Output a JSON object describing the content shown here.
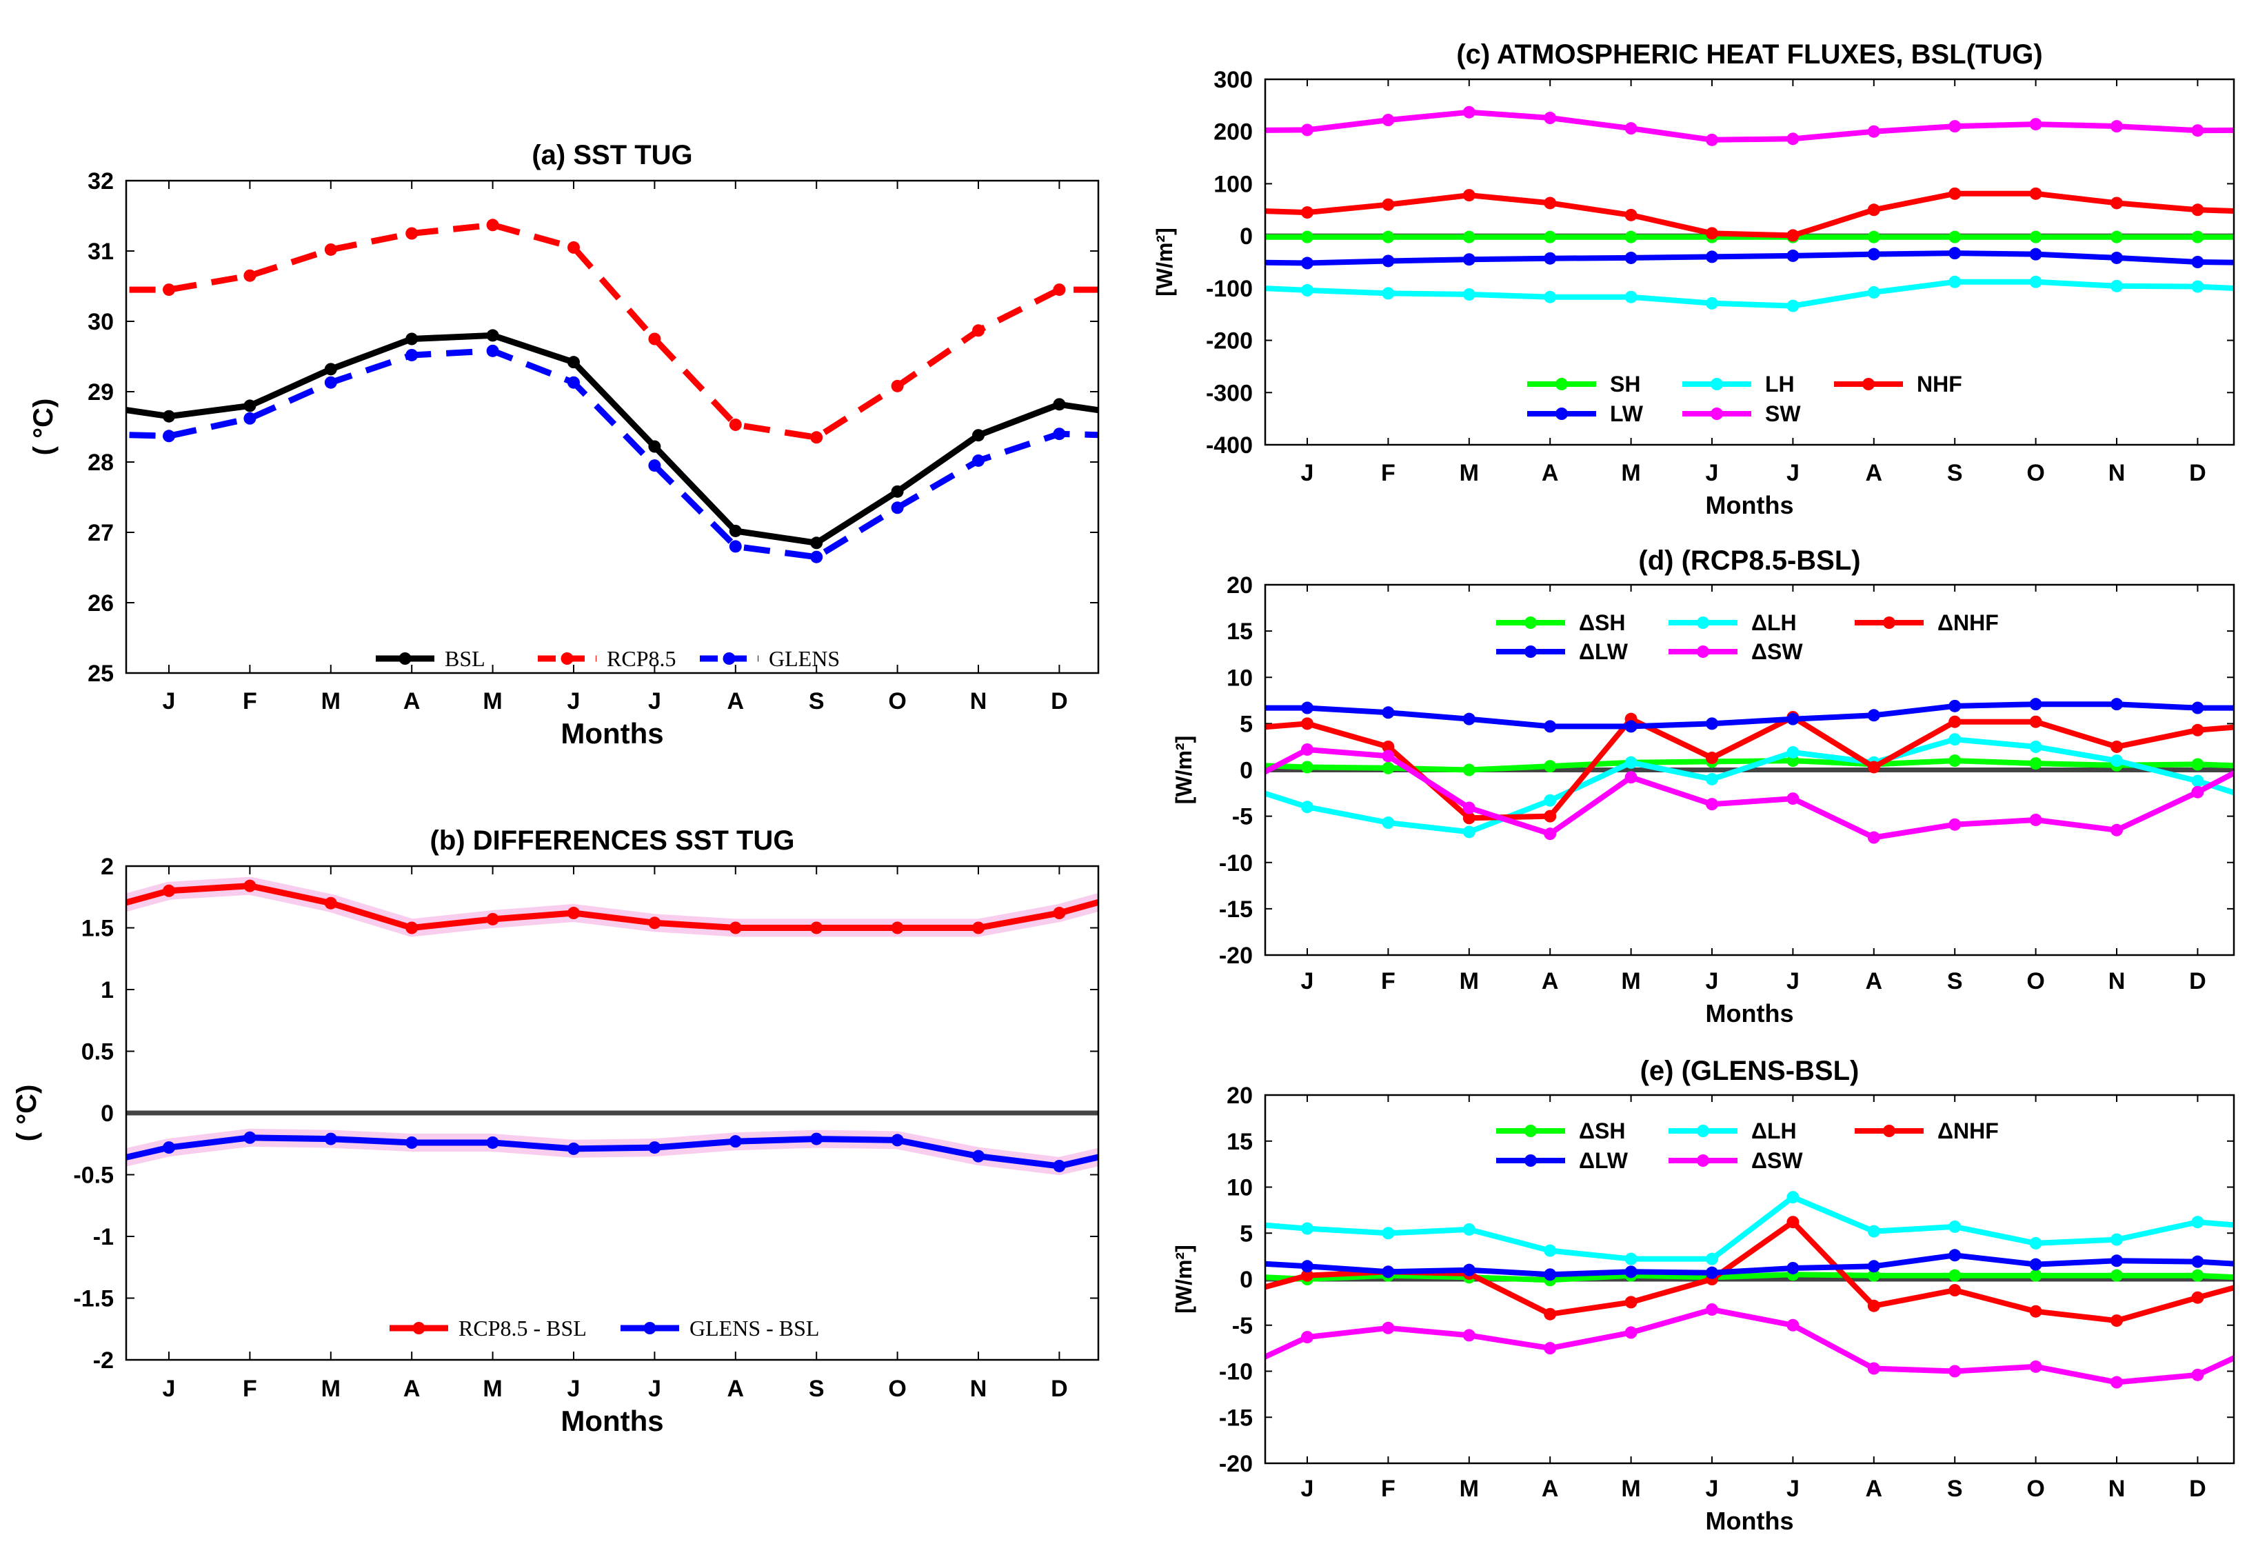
{
  "colors": {
    "black": "#000000",
    "red": "#ff0000",
    "blue": "#0000ff",
    "green": "#00ff00",
    "cyan": "#00ffff",
    "magenta": "#ff00ff",
    "zero_line": "#444444",
    "spread": "#f5b8e6"
  },
  "chart_data": [
    {
      "id": "a",
      "type": "line",
      "title": "(a) SST TUG",
      "xlabel": "Months",
      "ylabel": "( °C)",
      "ylim": [
        25,
        32
      ],
      "yticks": [
        25,
        26,
        27,
        28,
        29,
        30,
        31,
        32
      ],
      "categories": [
        "J",
        "F",
        "M",
        "A",
        "M",
        "J",
        "J",
        "A",
        "S",
        "O",
        "N",
        "D"
      ],
      "series": [
        {
          "name": "BSL",
          "color": "black",
          "dash": "solid",
          "values": [
            28.65,
            28.8,
            29.32,
            29.75,
            29.8,
            29.42,
            28.22,
            27.02,
            26.85,
            27.58,
            28.38,
            28.82
          ]
        },
        {
          "name": "RCP8.5",
          "color": "red",
          "dash": "dashed",
          "values": [
            30.45,
            30.65,
            31.02,
            31.25,
            31.37,
            31.05,
            29.75,
            28.53,
            28.35,
            29.08,
            29.87,
            30.45
          ]
        },
        {
          "name": "GLENS",
          "color": "blue",
          "dash": "dashed",
          "values": [
            28.37,
            28.62,
            29.13,
            29.52,
            29.58,
            29.13,
            27.95,
            26.8,
            26.65,
            27.35,
            28.02,
            28.4
          ]
        }
      ],
      "legend": [
        "BSL",
        "RCP8.5",
        "GLENS"
      ]
    },
    {
      "id": "b",
      "type": "line",
      "title": "(b) DIFFERENCES SST TUG",
      "xlabel": "Months",
      "ylabel": "( °C)",
      "ylim": [
        -2,
        2
      ],
      "yticks": [
        -2,
        -1.5,
        -1,
        -0.5,
        0,
        0.5,
        1,
        1.5,
        2
      ],
      "categories": [
        "J",
        "F",
        "M",
        "A",
        "M",
        "J",
        "J",
        "A",
        "S",
        "O",
        "N",
        "D"
      ],
      "series": [
        {
          "name": "RCP8.5 - BSL",
          "color": "red",
          "dash": "solid",
          "values": [
            1.8,
            1.84,
            1.7,
            1.5,
            1.57,
            1.62,
            1.54,
            1.5,
            1.5,
            1.5,
            1.5,
            1.62
          ]
        },
        {
          "name": "GLENS - BSL",
          "color": "blue",
          "dash": "solid",
          "values": [
            -0.28,
            -0.2,
            -0.21,
            -0.24,
            -0.24,
            -0.29,
            -0.28,
            -0.23,
            -0.21,
            -0.22,
            -0.35,
            -0.43
          ]
        }
      ],
      "legend": [
        "RCP8.5 - BSL",
        "GLENS - BSL"
      ]
    },
    {
      "id": "c",
      "type": "line",
      "title": "(c) ATMOSPHERIC HEAT FLUXES, BSL(TUG)",
      "xlabel": "Months",
      "ylabel": "[W/m²]",
      "ylim": [
        -400,
        300
      ],
      "yticks": [
        -400,
        -300,
        -200,
        -100,
        0,
        100,
        200,
        300
      ],
      "categories": [
        "J",
        "F",
        "M",
        "A",
        "M",
        "J",
        "J",
        "A",
        "S",
        "O",
        "N",
        "D"
      ],
      "series": [
        {
          "name": "SH",
          "color": "green",
          "values": [
            -2,
            -2,
            -2,
            -2,
            -2,
            -2,
            -2,
            -2,
            -2,
            -2,
            -2,
            -2
          ]
        },
        {
          "name": "LH",
          "color": "cyan",
          "values": [
            -104,
            -110,
            -112,
            -117,
            -117,
            -129,
            -134,
            -108,
            -88,
            -88,
            -96,
            -97
          ]
        },
        {
          "name": "NHF",
          "color": "red",
          "values": [
            45,
            60,
            78,
            63,
            40,
            5,
            1,
            50,
            81,
            81,
            63,
            50
          ]
        },
        {
          "name": "LW",
          "color": "blue",
          "values": [
            -52,
            -48,
            -45,
            -43,
            -42,
            -40,
            -38,
            -35,
            -33,
            -35,
            -42,
            -50
          ]
        },
        {
          "name": "SW",
          "color": "magenta",
          "values": [
            203,
            222,
            237,
            226,
            206,
            184,
            186,
            200,
            210,
            214,
            210,
            202
          ]
        }
      ],
      "legend": [
        "SH",
        "LH",
        "NHF",
        "LW",
        "SW"
      ]
    },
    {
      "id": "d",
      "type": "line",
      "title": "(d) (RCP8.5-BSL)",
      "xlabel": "Months",
      "ylabel": "[W/m²]",
      "ylim": [
        -20,
        20
      ],
      "yticks": [
        -20,
        -15,
        -10,
        -5,
        0,
        5,
        10,
        15,
        20
      ],
      "categories": [
        "J",
        "F",
        "M",
        "A",
        "M",
        "J",
        "J",
        "A",
        "S",
        "O",
        "N",
        "D"
      ],
      "series": [
        {
          "name": "ΔSH",
          "color": "green",
          "values": [
            0.3,
            0.2,
            0.0,
            0.4,
            0.8,
            0.9,
            1.0,
            0.6,
            1.0,
            0.7,
            0.5,
            0.6
          ]
        },
        {
          "name": "ΔLH",
          "color": "cyan",
          "values": [
            -4.0,
            -5.7,
            -6.7,
            -3.3,
            0.8,
            -1.0,
            1.9,
            0.8,
            3.3,
            2.5,
            1.0,
            -1.2
          ]
        },
        {
          "name": "ΔNHF",
          "color": "red",
          "values": [
            5.0,
            2.5,
            -5.2,
            -5.0,
            5.5,
            1.3,
            5.7,
            0.3,
            5.2,
            5.2,
            2.5,
            4.3
          ]
        },
        {
          "name": "ΔLW",
          "color": "blue",
          "values": [
            6.7,
            6.2,
            5.5,
            4.7,
            4.7,
            5.0,
            5.5,
            5.9,
            6.9,
            7.1,
            7.1,
            6.7
          ]
        },
        {
          "name": "ΔSW",
          "color": "magenta",
          "values": [
            2.2,
            1.5,
            -4.1,
            -6.9,
            -0.8,
            -3.7,
            -3.1,
            -7.3,
            -5.9,
            -5.4,
            -6.5,
            -2.4
          ]
        }
      ],
      "legend": [
        "ΔSH",
        "ΔLH",
        "ΔNHF",
        "ΔLW",
        "ΔSW"
      ]
    },
    {
      "id": "e",
      "type": "line",
      "title": "(e) (GLENS-BSL)",
      "xlabel": "Months",
      "ylabel": "[W/m²]",
      "ylim": [
        -20,
        20
      ],
      "yticks": [
        -20,
        -15,
        -10,
        -5,
        0,
        5,
        10,
        15,
        20
      ],
      "categories": [
        "J",
        "F",
        "M",
        "A",
        "M",
        "J",
        "J",
        "A",
        "S",
        "O",
        "N",
        "D"
      ],
      "series": [
        {
          "name": "ΔSH",
          "color": "green",
          "values": [
            0.0,
            0.4,
            0.2,
            -0.1,
            0.4,
            0.2,
            0.5,
            0.4,
            0.4,
            0.4,
            0.4,
            0.4
          ]
        },
        {
          "name": "ΔLH",
          "color": "cyan",
          "values": [
            5.5,
            5.0,
            5.4,
            3.1,
            2.2,
            2.2,
            8.9,
            5.2,
            5.7,
            3.9,
            4.3,
            6.2
          ]
        },
        {
          "name": "ΔNHF",
          "color": "red",
          "values": [
            0.4,
            0.8,
            0.6,
            -3.8,
            -2.5,
            0.0,
            6.2,
            -2.9,
            -1.2,
            -3.5,
            -4.5,
            -2.0
          ]
        },
        {
          "name": "ΔLW",
          "color": "blue",
          "values": [
            1.4,
            0.8,
            1.0,
            0.5,
            0.8,
            0.7,
            1.2,
            1.4,
            2.6,
            1.6,
            2.0,
            1.9
          ]
        },
        {
          "name": "ΔSW",
          "color": "magenta",
          "values": [
            -6.3,
            -5.3,
            -6.1,
            -7.5,
            -5.8,
            -3.3,
            -5.0,
            -9.7,
            -10.0,
            -9.5,
            -11.2,
            -10.4
          ]
        }
      ],
      "legend": [
        "ΔSH",
        "ΔLH",
        "ΔNHF",
        "ΔLW",
        "ΔSW"
      ]
    }
  ]
}
